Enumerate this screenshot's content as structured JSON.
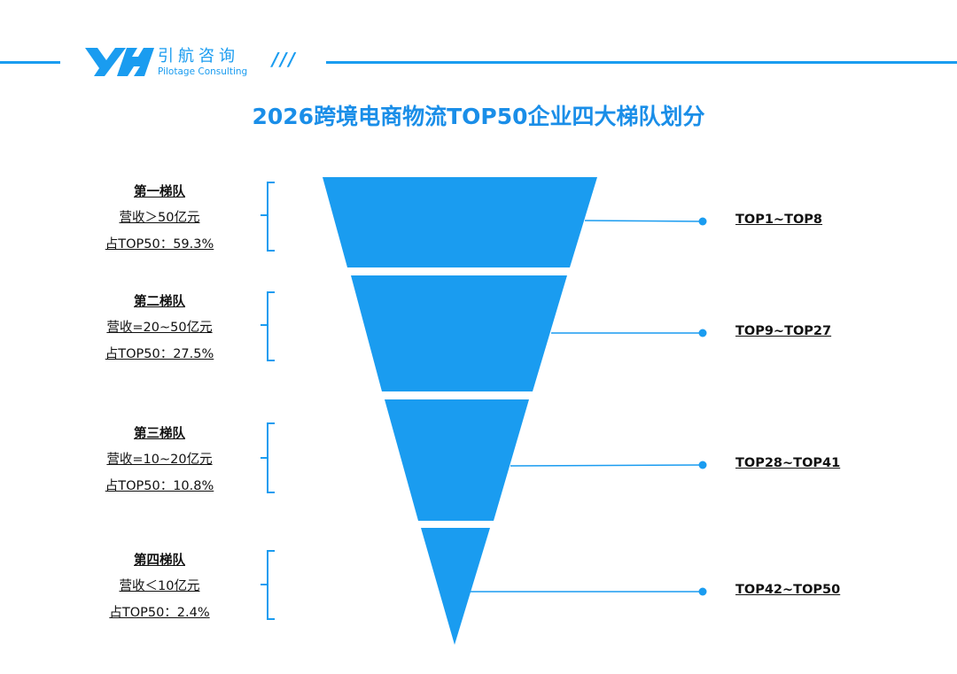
{
  "header": {
    "brand_cn": "引航咨询",
    "brand_en": "Pilotage Consulting",
    "decoration": "///",
    "accent_color": "#1a9cf0"
  },
  "title": "2026跨境电商物流TOP50企业四大梯队划分",
  "funnel_color": "#1a9cf0",
  "tiers": [
    {
      "name": "第一梯队",
      "revenue": "营收＞50亿元",
      "share": "占TOP50：59.3%",
      "share_value": 59.3,
      "rank": "TOP1~TOP8"
    },
    {
      "name": "第二梯队",
      "revenue": "营收=20~50亿元",
      "share": "占TOP50：27.5%",
      "share_value": 27.5,
      "rank": "TOP9~TOP27"
    },
    {
      "name": "第三梯队",
      "revenue": "营收=10~20亿元",
      "share": "占TOP50：10.8%",
      "share_value": 10.8,
      "rank": "TOP28~TOP41"
    },
    {
      "name": "第四梯队",
      "revenue": "营收＜10亿元",
      "share": "占TOP50：2.4%",
      "share_value": 2.4,
      "rank": "TOP42~TOP50"
    }
  ]
}
